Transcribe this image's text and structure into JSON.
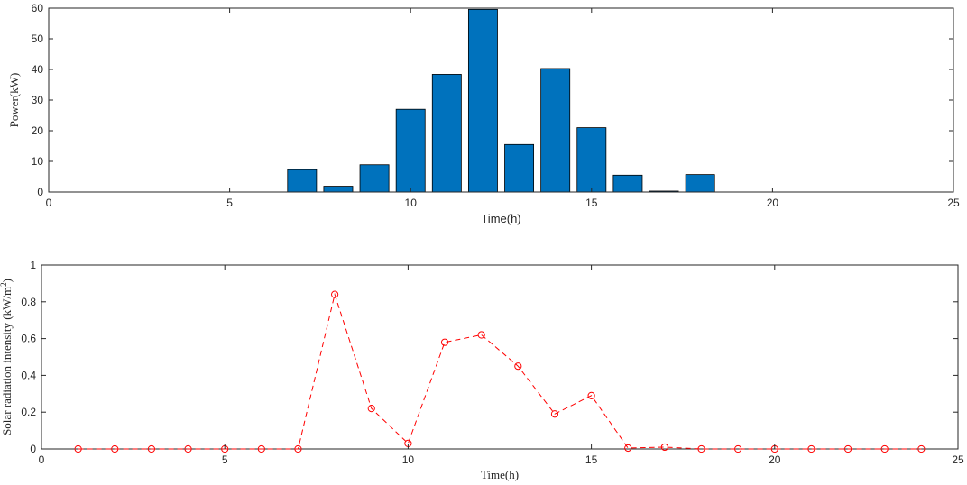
{
  "chart_data": [
    {
      "type": "bar",
      "title": "",
      "xlabel": "Time(h)",
      "ylabel": "Power(kW)",
      "xlim": [
        0,
        25
      ],
      "ylim": [
        0,
        60
      ],
      "xticks": [
        0,
        5,
        10,
        15,
        20,
        25
      ],
      "yticks": [
        0,
        10,
        20,
        30,
        40,
        50,
        60
      ],
      "bar_color": "#0072bd",
      "x": [
        7,
        8,
        9,
        10,
        11,
        12,
        13,
        14,
        15,
        16,
        17,
        18
      ],
      "values": [
        7.3,
        1.9,
        8.9,
        27.0,
        38.4,
        59.6,
        15.5,
        40.3,
        21.0,
        5.5,
        0.3,
        5.7
      ],
      "grid": false
    },
    {
      "type": "line",
      "title": "",
      "xlabel": "Time(h)",
      "ylabel": "Solar radiation intensity (kW/m",
      "ylabel_sup": "2",
      "ylabel_close": ")",
      "xlim": [
        0,
        25
      ],
      "ylim": [
        0,
        1
      ],
      "xticks": [
        0,
        5,
        10,
        15,
        20,
        25
      ],
      "yticks": [
        0,
        0.2,
        0.4,
        0.6,
        0.8,
        1
      ],
      "line_color": "#ff0000",
      "line_style": "dashed",
      "marker": "circle",
      "x": [
        1,
        2,
        3,
        4,
        5,
        6,
        7,
        8,
        9,
        10,
        11,
        12,
        13,
        14,
        15,
        16,
        17,
        18,
        19,
        20,
        21,
        22,
        23,
        24
      ],
      "y": [
        0,
        0,
        0,
        0,
        0,
        0,
        0,
        0.84,
        0.22,
        0.03,
        0.58,
        0.62,
        0.45,
        0.19,
        0.29,
        0.005,
        0.01,
        0,
        0,
        0,
        0,
        0,
        0,
        0
      ],
      "grid": false
    }
  ]
}
